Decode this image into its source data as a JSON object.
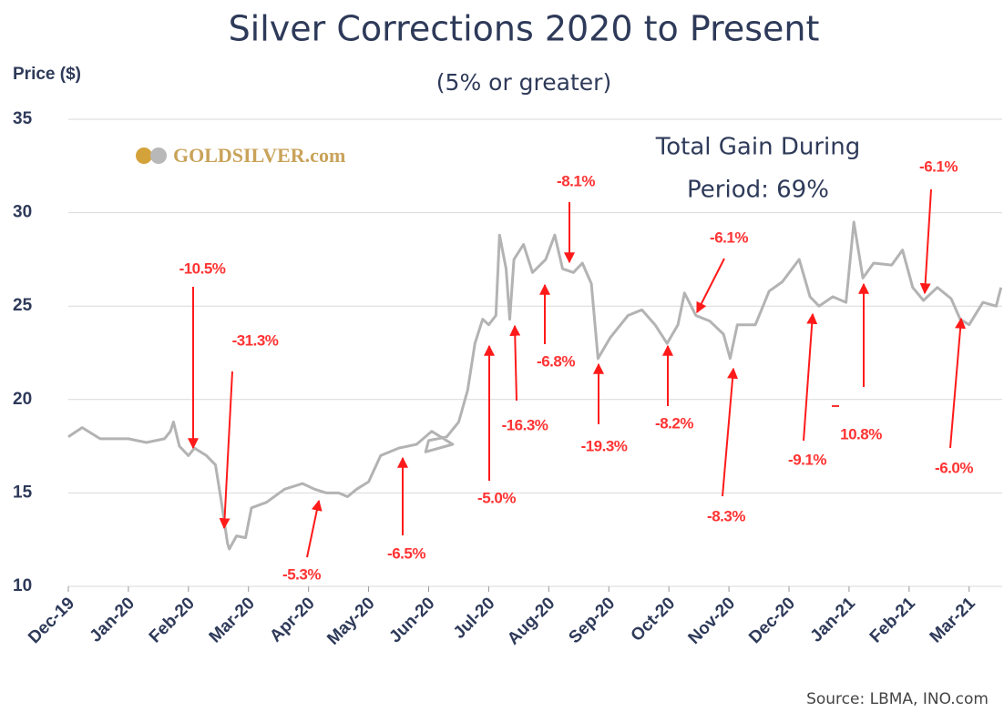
{
  "chart_data": {
    "type": "line",
    "title": "Silver Corrections 2020 to Present",
    "subtitle": "(5% or greater)",
    "y_label": "Price ($)",
    "note_lines": [
      "Total Gain During",
      "Period: 69%"
    ],
    "logo": "GOLDSILVER.com",
    "source": "Source: LBMA, INO.com",
    "xlim": [
      0,
      15.55
    ],
    "xticks": [
      {
        "value": 0,
        "label": "Dec-19"
      },
      {
        "value": 1,
        "label": "Jan-20"
      },
      {
        "value": 2,
        "label": "Feb-20"
      },
      {
        "value": 3,
        "label": "Mar-20"
      },
      {
        "value": 4,
        "label": "Apr-20"
      },
      {
        "value": 5,
        "label": "May-20"
      },
      {
        "value": 6,
        "label": "Jun-20"
      },
      {
        "value": 7,
        "label": "Jul-20"
      },
      {
        "value": 8,
        "label": "Aug-20"
      },
      {
        "value": 9,
        "label": "Sep-20"
      },
      {
        "value": 10,
        "label": "Oct-20"
      },
      {
        "value": 11,
        "label": "Nov-20"
      },
      {
        "value": 12,
        "label": "Dec-20"
      },
      {
        "value": 13,
        "label": "Jan-21"
      },
      {
        "value": 14,
        "label": "Feb-21"
      },
      {
        "value": 15,
        "label": "Mar-21"
      }
    ],
    "ylim": [
      10,
      35
    ],
    "yticks": [
      10,
      15,
      20,
      25,
      30,
      35
    ],
    "grid": true,
    "series": [
      {
        "name": "Silver",
        "color": "#b3b3b3",
        "x": [
          0,
          0.23,
          0.53,
          1.0,
          1.3,
          1.6,
          1.7,
          1.75,
          1.85,
          2.0,
          2.1,
          2.3,
          2.45,
          2.55,
          2.65,
          2.68,
          2.8,
          2.95,
          3.05,
          3.3,
          3.6,
          3.9,
          4.1,
          4.3,
          4.5,
          4.65,
          4.8,
          5.0,
          5.2,
          5.5,
          5.8,
          6.05,
          6.4,
          5.95,
          6.0,
          6.3,
          6.5,
          6.65,
          6.77,
          6.9,
          7.0,
          7.12,
          7.18,
          7.29,
          7.35,
          7.42,
          7.58,
          7.73,
          7.95,
          8.1,
          8.23,
          8.41,
          8.56,
          8.71,
          8.82,
          9.02,
          9.32,
          9.55,
          9.77,
          9.97,
          10.15,
          10.26,
          10.45,
          10.68,
          10.91,
          11.02,
          11.14,
          11.44,
          11.67,
          11.89,
          12.17,
          12.35,
          12.5,
          12.73,
          12.95,
          13.08,
          13.23,
          13.41,
          13.71,
          13.89,
          14.06,
          14.24,
          14.47,
          14.7,
          14.85,
          15.0,
          15.23,
          15.45,
          15.53
        ],
        "values": [
          18.0,
          18.5,
          17.9,
          17.9,
          17.7,
          17.9,
          18.3,
          18.8,
          17.5,
          17.0,
          17.4,
          17.0,
          16.5,
          14.5,
          12.3,
          12.0,
          12.7,
          12.6,
          14.2,
          14.5,
          15.2,
          15.5,
          15.2,
          15.0,
          15.0,
          14.8,
          15.2,
          15.6,
          17.0,
          17.4,
          17.6,
          18.3,
          17.6,
          17.2,
          17.8,
          18.0,
          18.8,
          20.5,
          23.0,
          24.3,
          24.0,
          24.5,
          28.8,
          27.0,
          24.3,
          27.5,
          28.3,
          26.8,
          27.5,
          28.8,
          27.0,
          26.8,
          27.3,
          26.2,
          22.2,
          23.3,
          24.5,
          24.8,
          24.0,
          23.0,
          24.0,
          25.7,
          24.5,
          24.2,
          23.5,
          22.2,
          24.0,
          24.0,
          25.8,
          26.3,
          27.5,
          25.5,
          25.0,
          25.5,
          25.2,
          29.5,
          26.5,
          27.3,
          27.2,
          28.0,
          26.0,
          25.3,
          26.0,
          25.4,
          24.3,
          24.0,
          25.2,
          25.0,
          26.0
        ]
      }
    ],
    "annotations": [
      "-10.5%",
      "-31.3%",
      "-5.3%",
      "-6.5%",
      "-5.0%",
      "-16.3%",
      "-6.8%",
      "-8.1%",
      "-19.3%",
      "-8.2%",
      "-6.1%",
      "-8.3%",
      "-9.1%",
      "10.8%",
      "-6.1%",
      "-6.0%"
    ],
    "annotation_color": "#ff3333"
  }
}
